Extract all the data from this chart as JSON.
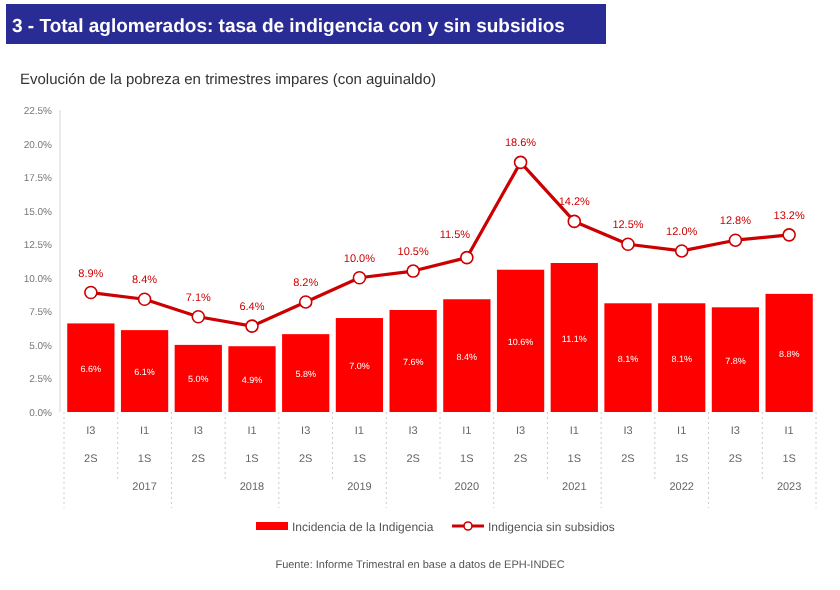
{
  "chart_data": {
    "type": "bar",
    "title": "3 - Total aglomerados: tasa de indigencia con y sin subsidios",
    "subtitle": "Evolución de la pobreza en trimestres impares (con aguinaldo)",
    "categories": [
      "I3",
      "I1",
      "I3",
      "I1",
      "I3",
      "I1",
      "I3",
      "I1",
      "I3",
      "I1",
      "I3",
      "I1",
      "I3",
      "I1"
    ],
    "series": [
      {
        "name": "Incidencia de la Indigencia",
        "color": "#ff0000",
        "values": [
          6.6,
          6.1,
          5.0,
          4.9,
          5.8,
          7.0,
          7.6,
          8.4,
          10.6,
          11.1,
          8.1,
          8.1,
          7.8,
          8.8
        ],
        "value_labels": [
          "6.6%",
          "6.1%",
          "5.0%",
          "4.9%",
          "5.8%",
          "7.0%",
          "7.6%",
          "8.4%",
          "10.6%",
          "11.1%",
          "8.1%",
          "8.1%",
          "7.8%",
          "8.8%"
        ]
      },
      {
        "name": "Indigencia sin subsidios",
        "type": "line",
        "color": "#cc0000",
        "marker": "circle",
        "values": [
          8.9,
          8.4,
          7.1,
          6.4,
          8.2,
          10.0,
          10.5,
          11.5,
          18.6,
          14.2,
          12.5,
          12.0,
          12.8,
          13.2
        ],
        "value_labels": [
          "8.9%",
          "8.4%",
          "7.1%",
          "6.4%",
          "8.2%",
          "10.0%",
          "10.5%",
          "11.5%",
          "18.6%",
          "14.2%",
          "12.5%",
          "12.0%",
          "12.8%",
          "13.2%"
        ]
      }
    ],
    "ylim": [
      0,
      22.5
    ],
    "yticks": [
      {
        "value": 0,
        "label": "0.0%"
      },
      {
        "value": 2.5,
        "label": "2.5%"
      },
      {
        "value": 5,
        "label": "5.0%"
      },
      {
        "value": 7.5,
        "label": "7.5%"
      },
      {
        "value": 10,
        "label": "10.0%"
      },
      {
        "value": 12.5,
        "label": "12.5%"
      },
      {
        "value": 15,
        "label": "15.0%"
      },
      {
        "value": 17.5,
        "label": "17.5%"
      },
      {
        "value": 20,
        "label": "20.0%"
      },
      {
        "value": 22.5,
        "label": "22.5%"
      }
    ],
    "legend": "bottom",
    "annotations": [
      "Fuente: Informe Trimestral en base a datos de EPH-INDEC",
      "2S",
      "1S",
      "2S",
      "1S",
      "2S",
      "1S",
      "2S",
      "1S",
      "2S",
      "1S",
      "2S",
      "1S",
      "2S",
      "1S",
      "2017",
      "2018",
      "2019",
      "2020",
      "2021",
      "2022",
      "2023"
    ]
  }
}
